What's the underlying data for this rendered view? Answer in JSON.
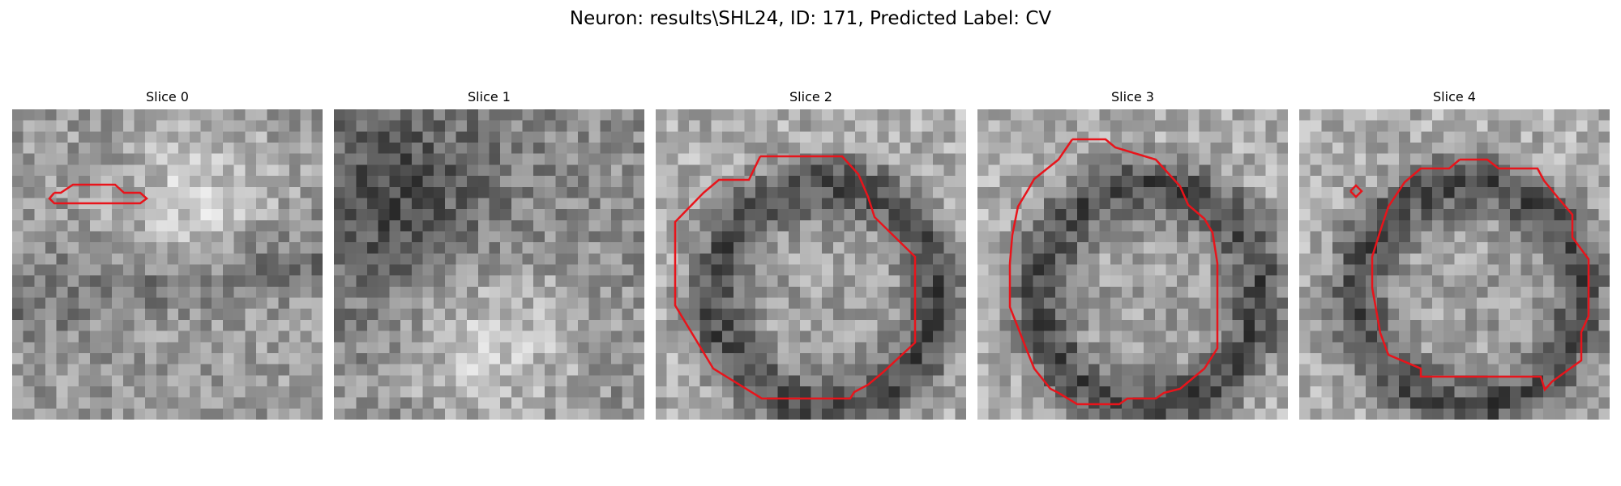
{
  "figure": {
    "title": "Neuron: results\\SHL24, ID: 171, Predicted Label: CV",
    "outline_color": "#e8141b",
    "colormap": "gray",
    "slices": [
      {
        "title": "Slice 0",
        "seed": 11,
        "structure": "diagonal-membrane"
      },
      {
        "title": "Slice 1",
        "seed": 23,
        "structure": "dark-upper-left-cell"
      },
      {
        "title": "Slice 2",
        "seed": 37,
        "structure": "vesicle-ring"
      },
      {
        "title": "Slice 3",
        "seed": 53,
        "structure": "vesicle-ring"
      },
      {
        "title": "Slice 4",
        "seed": 71,
        "structure": "vesicle-ring"
      }
    ]
  }
}
